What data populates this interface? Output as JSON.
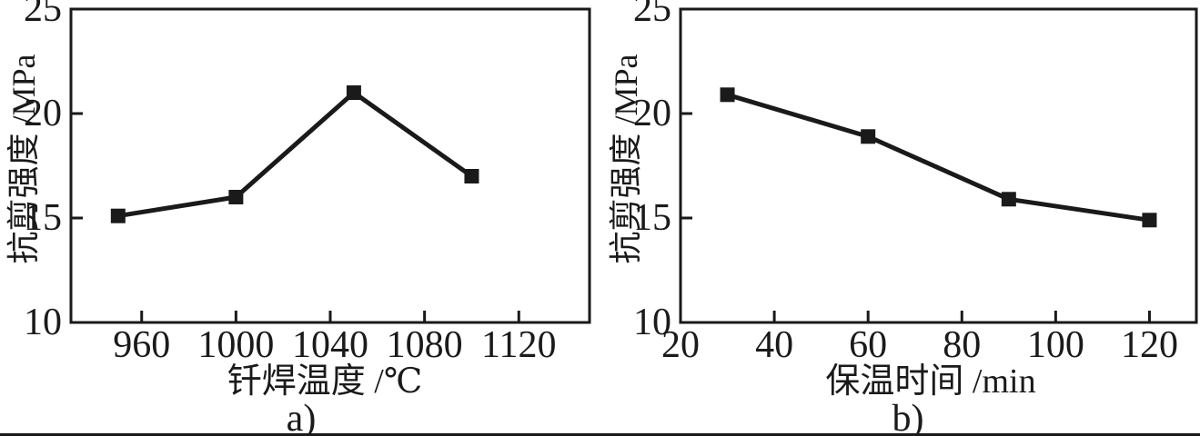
{
  "figure": {
    "background": "#ffffff",
    "ink_color": "#1a1a1a",
    "bottom_scan_bar": true
  },
  "chart_data": [
    {
      "id": "a",
      "type": "line",
      "caption": "a)",
      "xlabel": "钎焊温度 /℃",
      "ylabel": "抗剪强度 /MPa",
      "x": [
        950,
        1000,
        1050,
        1100
      ],
      "y": [
        15.1,
        16.0,
        21.0,
        17.0
      ],
      "xticks": [
        960,
        1000,
        1040,
        1080,
        1120
      ],
      "yticks": [
        10,
        15,
        20,
        25
      ],
      "xlim": [
        930,
        1150
      ],
      "ylim": [
        10,
        25
      ],
      "marker": "filled-square",
      "line_color": "#1a1a1a",
      "grid": false,
      "legend": null
    },
    {
      "id": "b",
      "type": "line",
      "caption": "b)",
      "xlabel": "保温时间 /min",
      "ylabel": "抗剪强度 /MPa",
      "x": [
        30,
        60,
        90,
        120
      ],
      "y": [
        20.9,
        18.9,
        15.9,
        14.9
      ],
      "xticks": [
        20,
        40,
        60,
        80,
        100,
        120
      ],
      "yticks": [
        10,
        15,
        20,
        25
      ],
      "xlim": [
        20,
        130
      ],
      "ylim": [
        10,
        25
      ],
      "marker": "filled-square",
      "line_color": "#1a1a1a",
      "grid": false,
      "legend": null
    }
  ]
}
